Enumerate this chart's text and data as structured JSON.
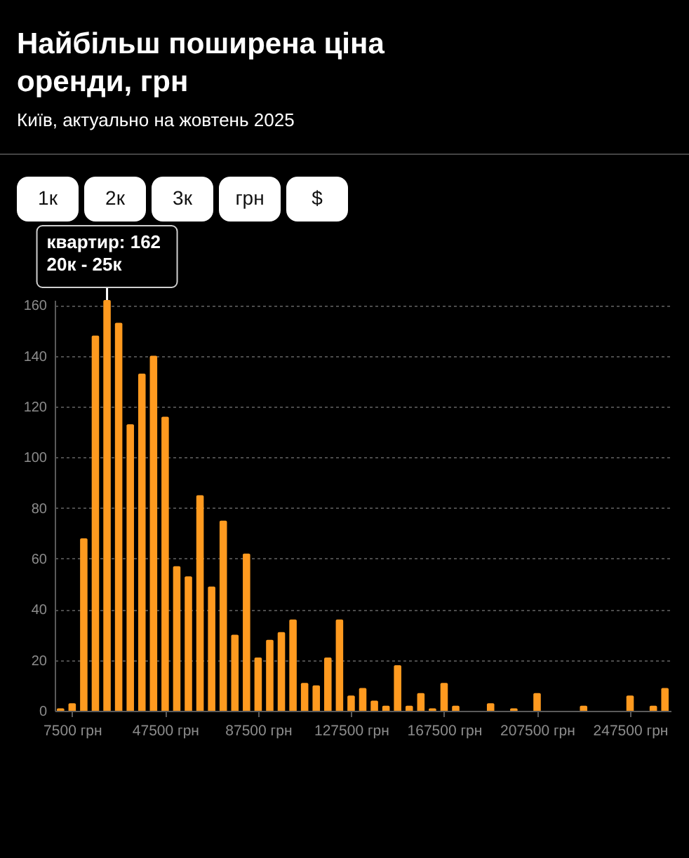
{
  "chart_data": {
    "type": "histogram",
    "title": "Найбільш поширена ціна оренди, грн",
    "subtitle": "Київ, актуально на жовтень 2025",
    "bins": [
      0,
      5000,
      10000,
      15000,
      20000,
      25000,
      30000,
      35000,
      40000,
      45000,
      50000,
      55000,
      60000,
      65000,
      70000,
      75000,
      80000,
      85000,
      90000,
      95000,
      100000,
      105000,
      110000,
      115000,
      120000,
      125000,
      130000,
      135000,
      140000,
      145000,
      150000,
      155000,
      160000,
      165000,
      170000,
      175000,
      180000,
      185000,
      190000,
      195000,
      200000,
      205000,
      210000,
      215000,
      220000,
      225000,
      230000,
      235000,
      240000,
      245000,
      250000,
      255000,
      260000,
      265000
    ],
    "values": [
      1,
      3,
      68,
      148,
      162,
      153,
      113,
      133,
      140,
      116,
      57,
      53,
      85,
      49,
      75,
      30,
      62,
      21,
      28,
      31,
      36,
      11,
      10,
      21,
      36,
      6,
      9,
      4,
      2,
      18,
      2,
      7,
      1,
      11,
      2,
      0,
      0,
      3,
      0,
      1,
      0,
      7,
      0,
      0,
      0,
      2,
      0,
      0,
      0,
      6,
      0,
      2,
      9
    ],
    "color": "#ff9a1f",
    "xlim": [
      0,
      265000
    ],
    "xticks": [
      {
        "value": 7500,
        "label": "7500 грн"
      },
      {
        "value": 47500,
        "label": "47500 грн"
      },
      {
        "value": 87500,
        "label": "87500 грн"
      },
      {
        "value": 127500,
        "label": "127500 грн"
      },
      {
        "value": 167500,
        "label": "167500 грн"
      },
      {
        "value": 207500,
        "label": "207500 грн"
      },
      {
        "value": 247500,
        "label": "247500 грн"
      }
    ],
    "ylim": [
      0,
      162
    ],
    "yticks": [
      0,
      20,
      40,
      60,
      80,
      100,
      120,
      140,
      160
    ],
    "grid": "y",
    "annotations": [
      "1к",
      "2к",
      "3к",
      "грн",
      "$",
      {
        "text": "квартир: 162\n20к - 25к",
        "x": 22500,
        "y": 162
      }
    ]
  }
}
